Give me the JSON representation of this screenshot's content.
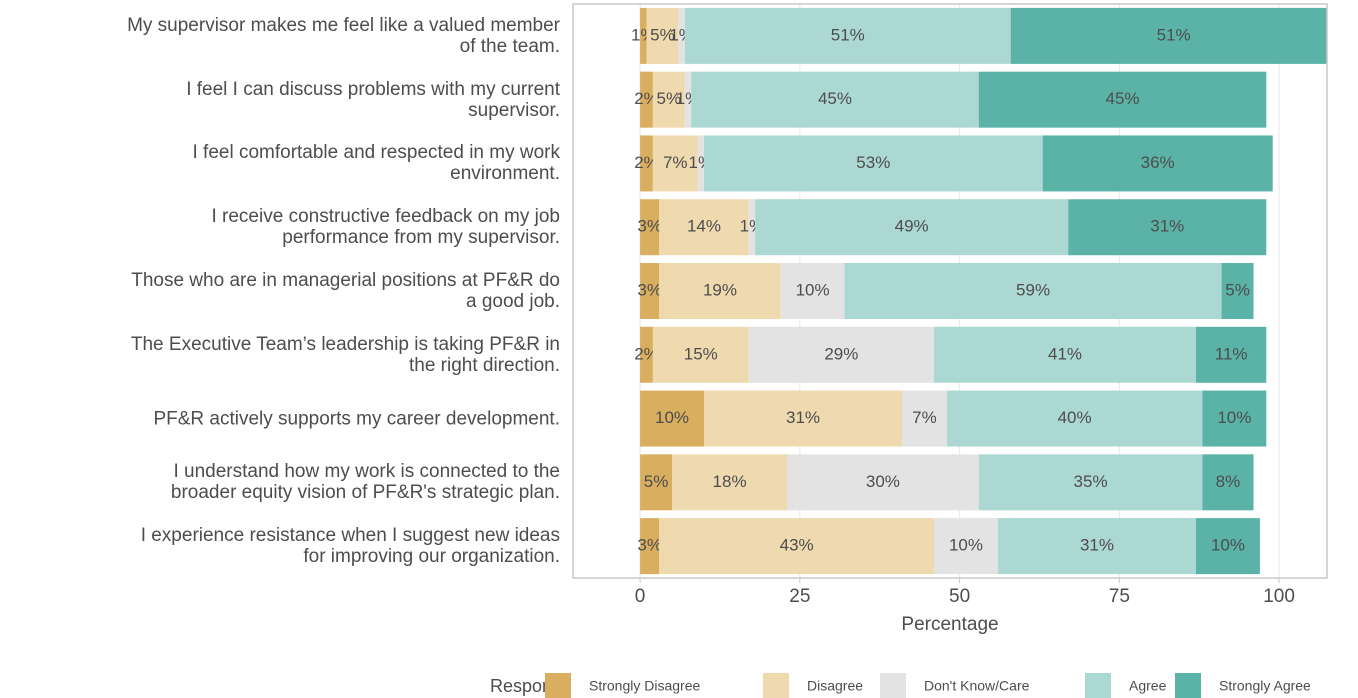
{
  "chart_data": {
    "type": "stacked_barh",
    "categories": [
      "My supervisor makes me feel like a valued member\nof the team.",
      "I feel I can discuss problems with my current\nsupervisor.",
      "I feel comfortable and respected in my work\nenvironment.",
      "I receive constructive feedback on my job\nperformance from my supervisor.",
      "Those who are in managerial positions at PF&R do\na good job.",
      "The Executive Team’s leadership is taking PF&R in\nthe right direction.",
      "PF&R actively supports my career development.",
      "I understand how my work is connected to the\nbroader equity vision of PF&R's strategic plan.",
      "I experience resistance when I suggest new ideas\nfor improving our organization."
    ],
    "series": [
      {
        "name": "Strongly Disagree",
        "color": "#d9ae5f",
        "values": [
          1,
          2,
          2,
          3,
          3,
          2,
          10,
          5,
          3
        ],
        "value_labels": [
          "1%",
          "2%",
          "2%",
          "3%",
          "3%",
          "2%",
          "10%",
          "5%",
          "3%"
        ]
      },
      {
        "name": "Disagree",
        "color": "#efd9af",
        "values": [
          5,
          5,
          7,
          14,
          19,
          15,
          31,
          18,
          43
        ],
        "value_labels": [
          "5%",
          "5%",
          "7%",
          "14%",
          "19%",
          "15%",
          "31%",
          "18%",
          "43%"
        ]
      },
      {
        "name": "Don't Know/Care",
        "color": "#e3e3e3",
        "values": [
          1,
          1,
          1,
          1,
          10,
          29,
          7,
          30,
          10
        ],
        "value_labels": [
          "1%",
          "1%",
          "1%",
          "1%",
          "10%",
          "29%",
          "7%",
          "30%",
          "10%"
        ]
      },
      {
        "name": "Agree",
        "color": "#acd8d3",
        "values": [
          51,
          45,
          53,
          49,
          59,
          41,
          40,
          35,
          31
        ],
        "value_labels": [
          "51%",
          "45%",
          "53%",
          "49%",
          "59%",
          "41%",
          "40%",
          "35%",
          "31%"
        ]
      },
      {
        "name": "Strongly Agree",
        "color": "#5bb2a6",
        "values": [
          51,
          45,
          36,
          31,
          5,
          11,
          10,
          8,
          10
        ],
        "value_labels": [
          "51%",
          "45%",
          "36%",
          "31%",
          "5%",
          "11%",
          "10%",
          "8%",
          "10%"
        ]
      }
    ],
    "xlabel": "Percentage",
    "legend_title": "Response",
    "legend": "bottom",
    "xlim": [
      -10.5,
      107.5
    ],
    "xticks": [
      0,
      25,
      50,
      75,
      100
    ],
    "grid": true
  }
}
